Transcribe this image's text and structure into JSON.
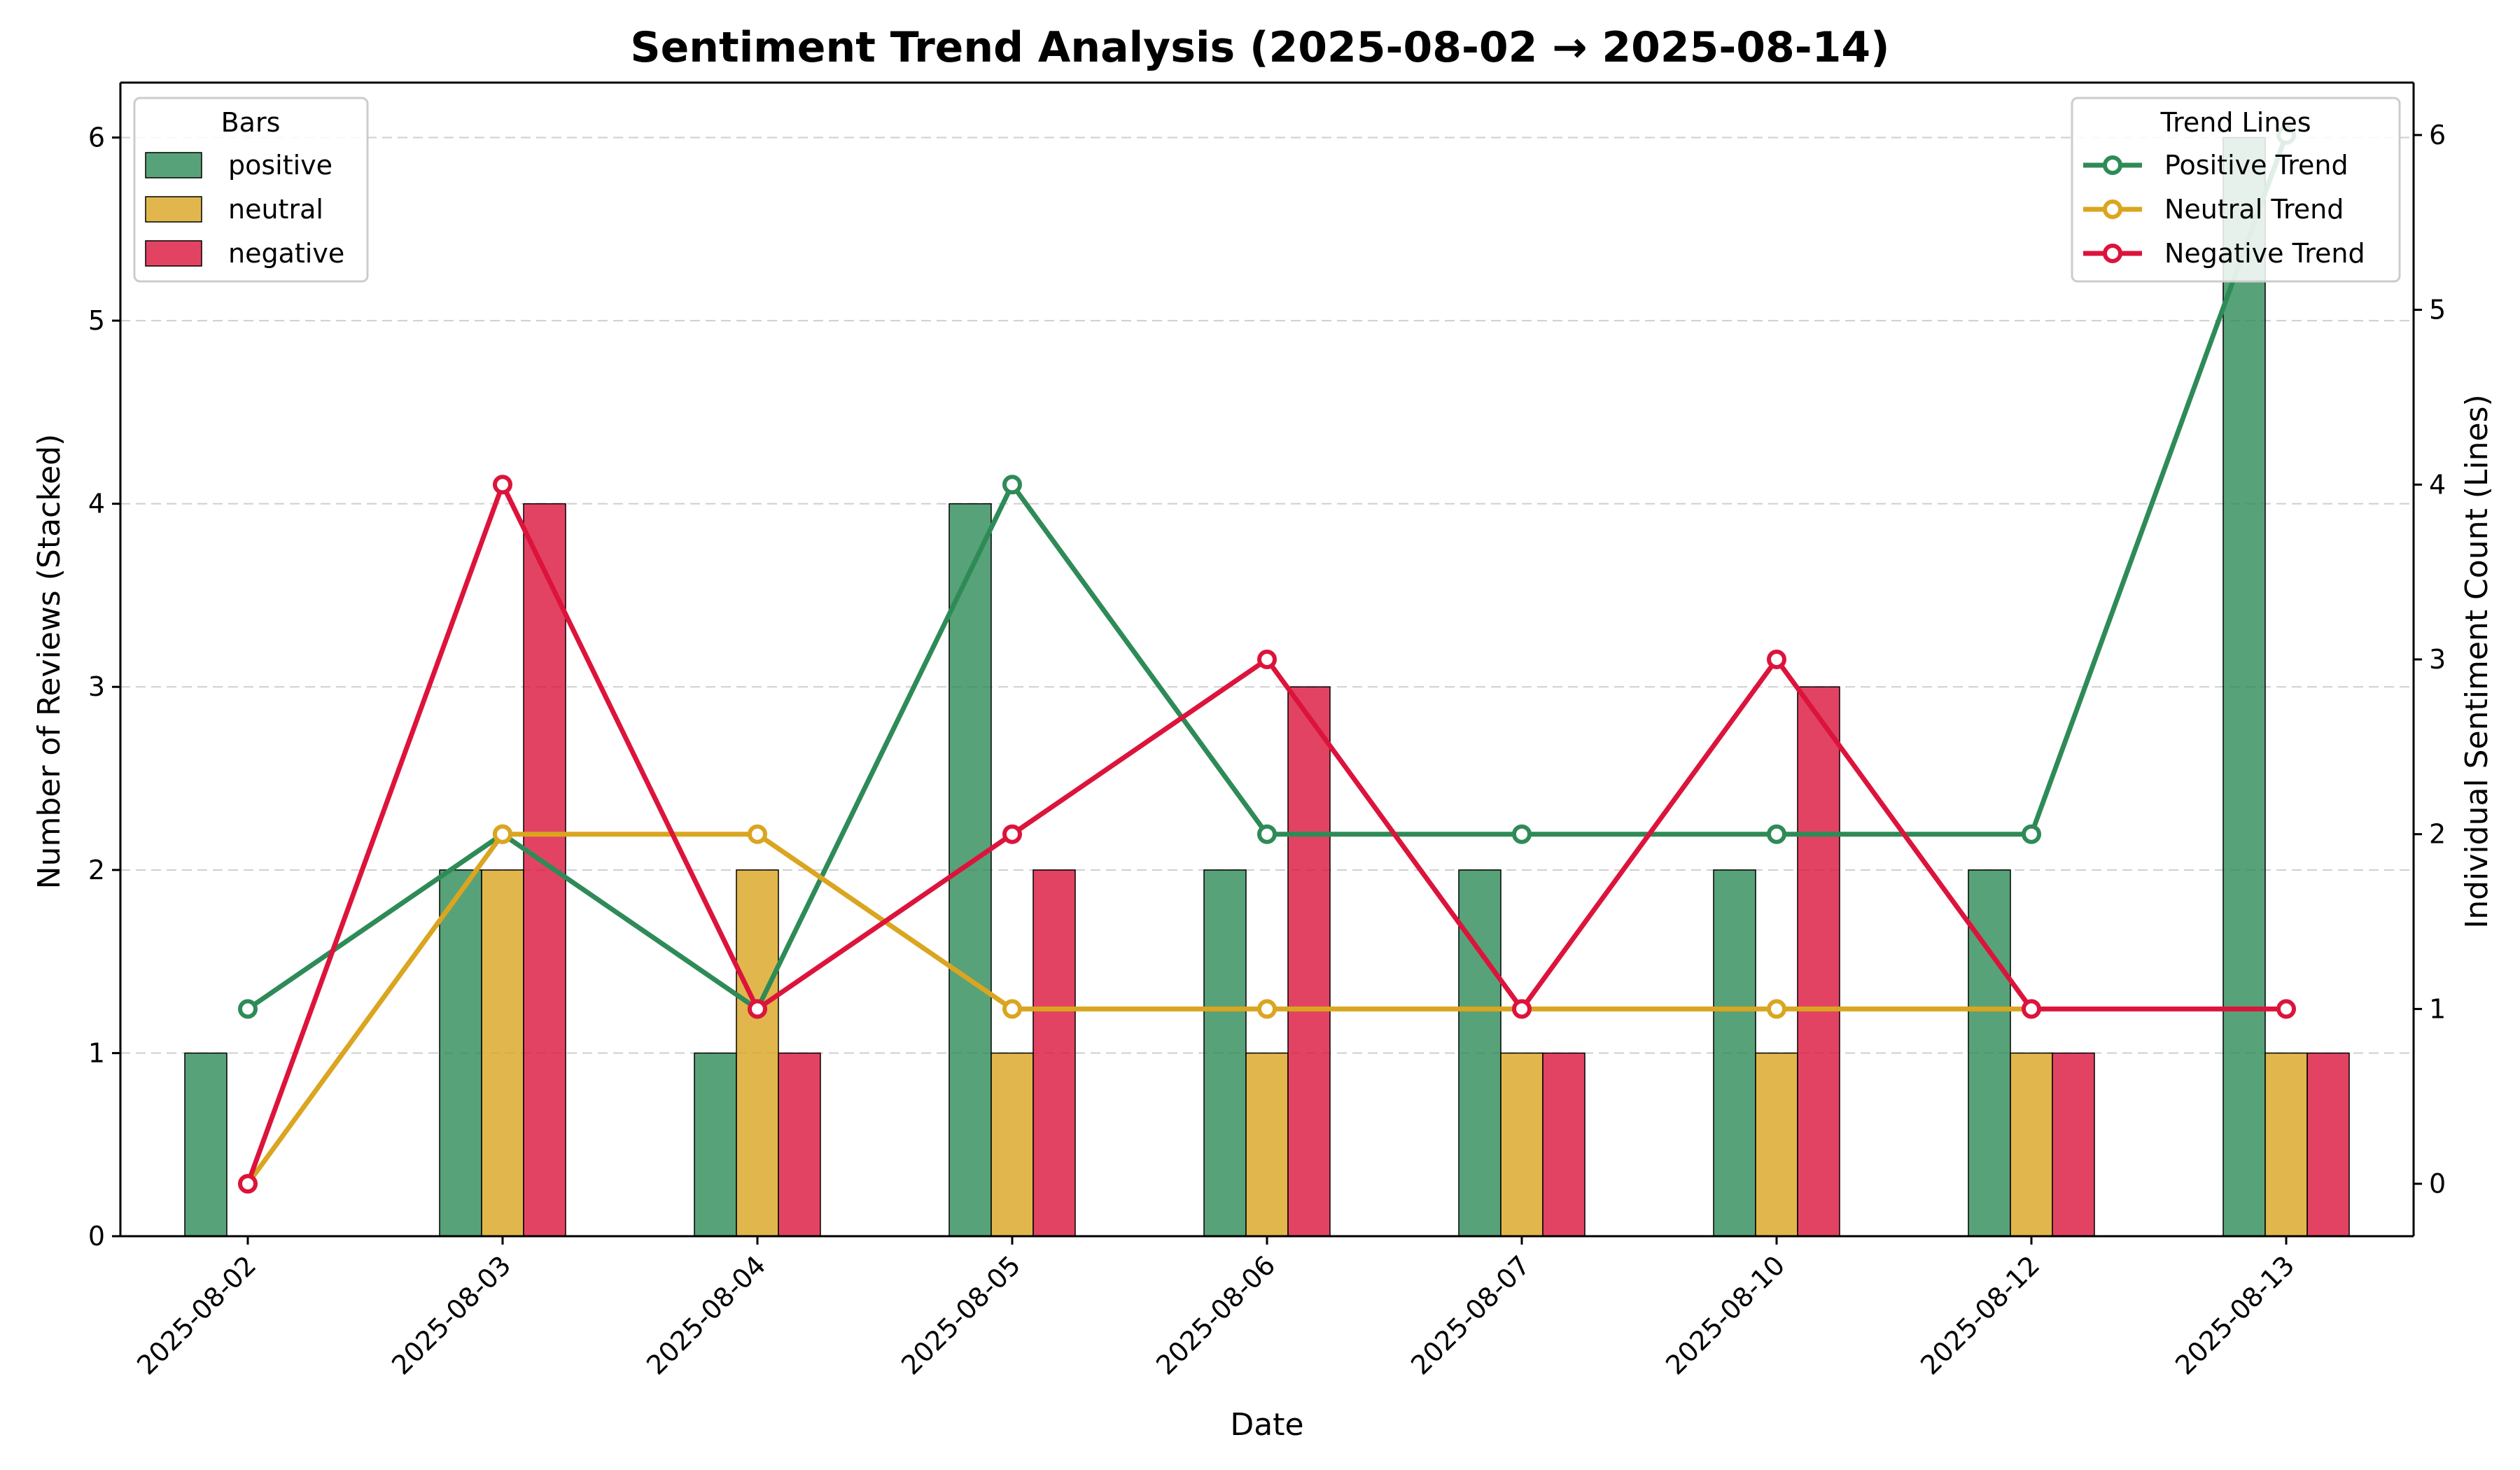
{
  "chart_data": {
    "type": "bar",
    "title": "Sentiment Trend Analysis (2025-08-02 → 2025-08-14)",
    "xlabel": "Date",
    "ylabel": "Number of Reviews (Stacked)",
    "ylabel_right": "Individual Sentiment Count (Lines)",
    "categories": [
      "2025-08-02",
      "2025-08-03",
      "2025-08-04",
      "2025-08-05",
      "2025-08-06",
      "2025-08-07",
      "2025-08-10",
      "2025-08-12",
      "2025-08-13"
    ],
    "ylim": [
      0,
      6.3
    ],
    "ylim_right": [
      -0.3,
      6.3
    ],
    "yticks": [
      0,
      1,
      2,
      3,
      4,
      5,
      6
    ],
    "yticks_right": [
      0,
      1,
      2,
      3,
      4,
      5,
      6
    ],
    "grid": "horizontal dashed",
    "bar_series": [
      {
        "name": "positive",
        "color": "#2e8b57",
        "values": [
          1,
          2,
          1,
          4,
          2,
          2,
          2,
          2,
          6
        ]
      },
      {
        "name": "neutral",
        "color": "#daa520",
        "values": [
          0,
          2,
          2,
          1,
          1,
          1,
          1,
          1,
          1
        ]
      },
      {
        "name": "negative",
        "color": "#dc143c",
        "values": [
          0,
          4,
          1,
          2,
          3,
          1,
          3,
          1,
          1
        ]
      }
    ],
    "line_series": [
      {
        "name": "Positive Trend",
        "color": "#2e8b57",
        "values": [
          1,
          2,
          1,
          4,
          2,
          2,
          2,
          2,
          6
        ]
      },
      {
        "name": "Neutral Trend",
        "color": "#daa520",
        "values": [
          0,
          2,
          2,
          1,
          1,
          1,
          1,
          1,
          null
        ]
      },
      {
        "name": "Negative Trend",
        "color": "#dc143c",
        "values": [
          0,
          4,
          1,
          2,
          3,
          1,
          3,
          1,
          1
        ]
      }
    ],
    "legend_bars": {
      "title": "Bars",
      "placement": "top-left"
    },
    "legend_lines": {
      "title": "Trend Lines",
      "placement": "top-right"
    }
  }
}
